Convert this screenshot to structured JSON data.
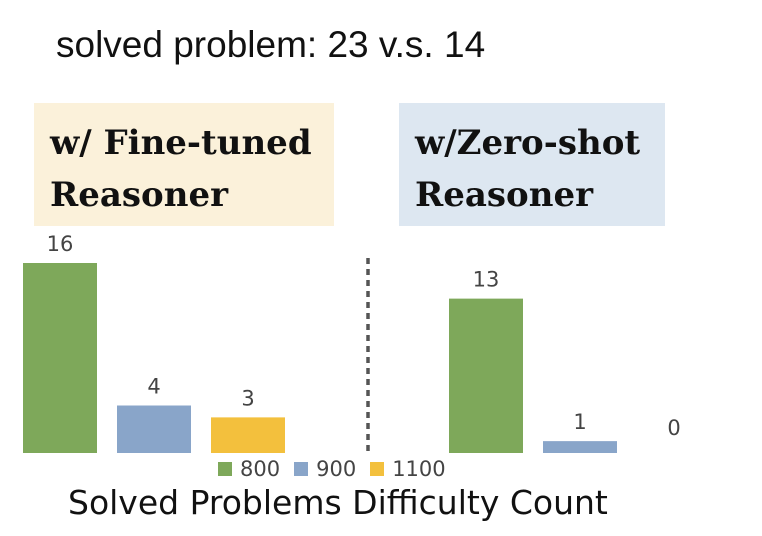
{
  "heading": "solved problem: 23 v.s. 14",
  "panels": [
    {
      "title_line1": "w/ Fine-tuned",
      "title_line2": "Reasoner",
      "bg_color": "#fbf1da"
    },
    {
      "title_line1": "w/Zero-shot",
      "title_line2": "Reasoner",
      "bg_color": "#dde7f1"
    }
  ],
  "chart_data": {
    "type": "bar",
    "xlabel": "Solved Problems Difficulty Count",
    "ylim": [
      0,
      16
    ],
    "categories": [
      "w/ Fine-tuned Reasoner",
      "w/Zero-shot Reasoner"
    ],
    "series": [
      {
        "name": "800",
        "values": [
          16,
          13
        ],
        "color": "#7ea85a"
      },
      {
        "name": "900",
        "values": [
          4,
          1
        ],
        "color": "#89a5c9"
      },
      {
        "name": "1100",
        "values": [
          3,
          0
        ],
        "color": "#f3c03d"
      }
    ],
    "grid": false,
    "legend": "bottom"
  }
}
